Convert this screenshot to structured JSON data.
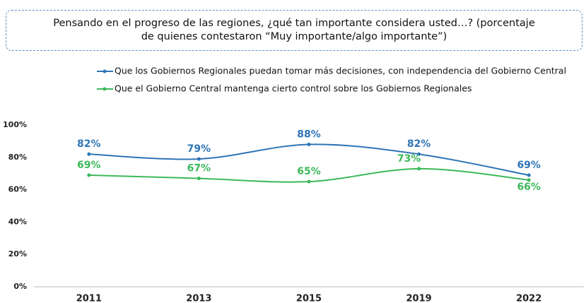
{
  "chart_data": {
    "type": "line",
    "title": "Pensando en el progreso de las regiones, ¿qué tan importante considera usted…? (porcentaje de quienes contestaron “Muy importante/algo importante”)",
    "categories": [
      "2011",
      "2013",
      "2015",
      "2019",
      "2022"
    ],
    "series": [
      {
        "name": "Que los Gobiernos Regionales puedan tomar más decisiones, con independencia del Gobierno Central",
        "color": "#2e75b6",
        "values": [
          82,
          79,
          88,
          82,
          69
        ],
        "value_labels": [
          "82%",
          "79%",
          "88%",
          "82%",
          "69%"
        ]
      },
      {
        "name": "Que el Gobierno Central mantenga cierto control sobre los Gobiernos Regionales",
        "color": "#3cb95a",
        "values": [
          69,
          67,
          65,
          73,
          66
        ],
        "value_labels": [
          "69%",
          "67%",
          "65%",
          "73%",
          "66%"
        ]
      }
    ],
    "ylim": [
      0,
      100
    ],
    "yticks": [
      {
        "value": 0,
        "label": "0%"
      },
      {
        "value": 20,
        "label": "20%"
      },
      {
        "value": 40,
        "label": "40%"
      },
      {
        "value": 60,
        "label": "60%"
      },
      {
        "value": 80,
        "label": "80%"
      },
      {
        "value": 100,
        "label": "100%"
      }
    ],
    "legend": "top"
  }
}
